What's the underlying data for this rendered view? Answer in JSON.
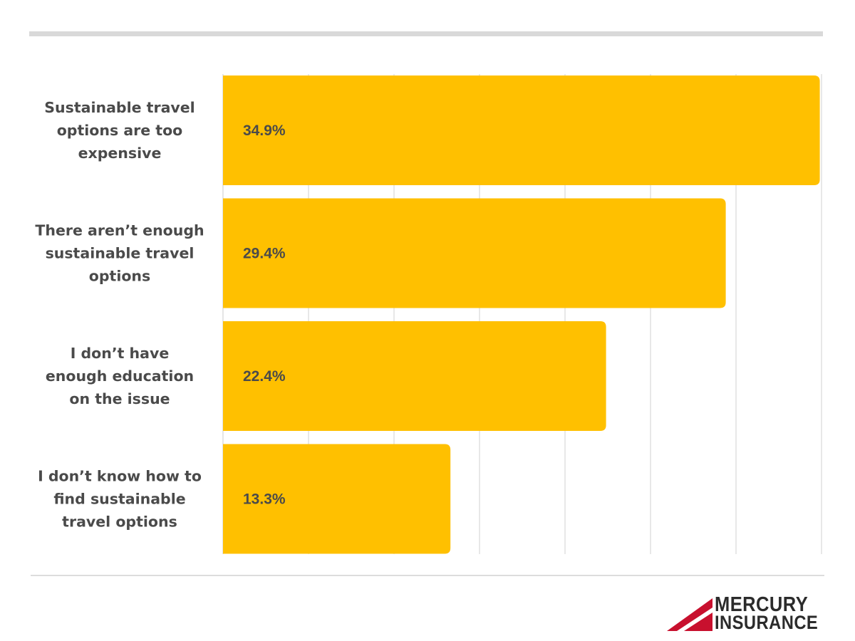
{
  "chart_data": {
    "type": "bar",
    "orientation": "horizontal",
    "categories": [
      "Sustainable travel options are too expensive",
      "There aren’t enough sustainable travel options",
      "I don’t have enough education on the issue",
      "I don’t know how to find sustainable travel options"
    ],
    "category_lines": [
      [
        "Sustainable travel",
        "options are too",
        "expensive"
      ],
      [
        "There aren’t enough",
        "sustainable travel",
        "options"
      ],
      [
        "I don’t have",
        "enough education",
        "on the issue"
      ],
      [
        "I don’t know how to",
        "find sustainable",
        "travel options"
      ]
    ],
    "values": [
      34.9,
      29.4,
      22.4,
      13.3
    ],
    "value_labels": [
      "34.9%",
      "29.4%",
      "22.4%",
      "13.3%"
    ],
    "xlim": [
      0,
      35
    ],
    "grid": true,
    "bar_color": "#ffc000",
    "grid_color": "#d9d9d9",
    "text_color": "#4a4a4a"
  },
  "logo": {
    "line1": "MERCURY",
    "line2": "INSURANCE",
    "brand_color": "#c8102e"
  }
}
